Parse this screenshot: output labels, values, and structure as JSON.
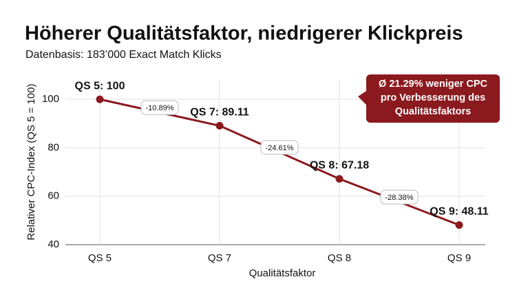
{
  "chart_data": {
    "type": "line",
    "title": "Höherer Qualitätsfaktor, niedrigerer Klickpreis",
    "subtitle": "Datenbasis: 183’000 Exact Match Klicks",
    "x_label": "Qualitätsfaktor",
    "y_label": "Relativer CPC-Index (QS 5 = 100)",
    "categories": [
      "QS 5",
      "QS 7",
      "QS 8",
      "QS 9"
    ],
    "values": [
      100,
      89.11,
      67.18,
      48.11
    ],
    "value_labels": [
      "QS 5: 100",
      "QS 7: 89.11",
      "QS 8: 67.18",
      "QS 9: 48.11"
    ],
    "change_labels": [
      "-10.89%",
      "-24.61%",
      "-28.38%"
    ],
    "callout": [
      "Ø 21.29% weniger CPC",
      "pro Verbesserung des",
      "Qualitätsfaktors"
    ],
    "color": "#8b1a1f",
    "ylim": [
      40,
      108
    ],
    "yticks": [
      40,
      60,
      80,
      100
    ],
    "grid": true
  }
}
